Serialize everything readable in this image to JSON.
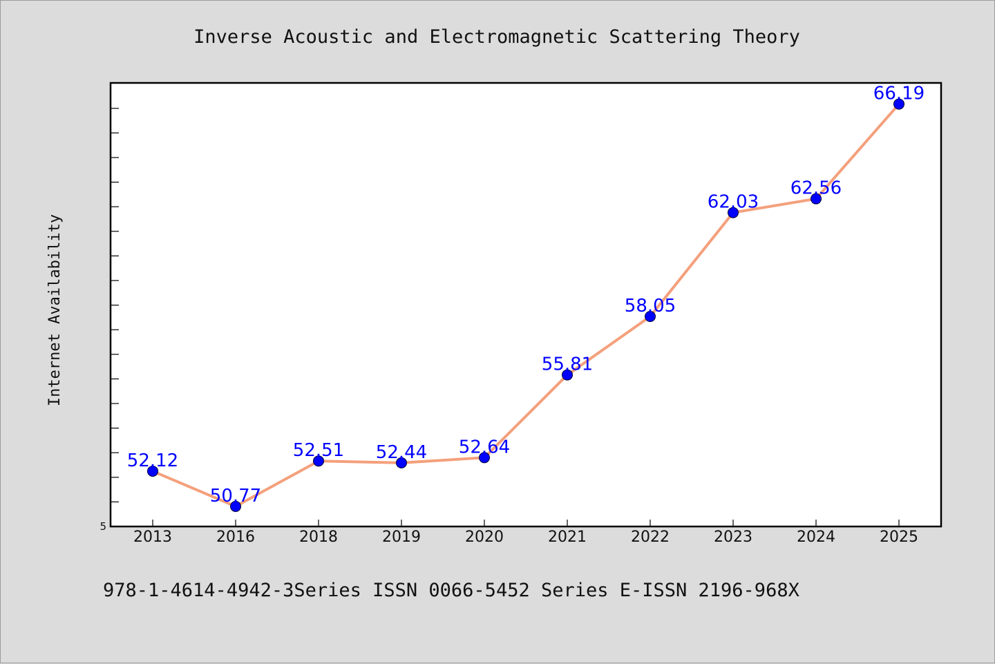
{
  "chart_data": {
    "type": "line",
    "title": "Inverse Acoustic and Electromagnetic Scattering Theory",
    "ylabel": "Internet Availability",
    "xlabel": "",
    "categories": [
      "2013",
      "2016",
      "2018",
      "2019",
      "2020",
      "2021",
      "2022",
      "2023",
      "2024",
      "2025"
    ],
    "values": [
      52.12,
      50.77,
      52.51,
      52.44,
      52.64,
      55.81,
      58.05,
      62.03,
      62.56,
      66.19
    ],
    "data_labels": [
      "52.12",
      "50.77",
      "52.51",
      "52.44",
      "52.64",
      "55.81",
      "58.05",
      "62.03",
      "62.56",
      "66.19"
    ],
    "ylim": [
      50,
      67
    ],
    "ytick_labels": [
      "5"
    ],
    "grid": false,
    "line_color": "#f4a07c",
    "marker_color": "#0000ff",
    "label_color": "#0000ff",
    "caption": "978-1-4614-4942-3Series ISSN 0066-5452 Series E-ISSN 2196-968X"
  }
}
